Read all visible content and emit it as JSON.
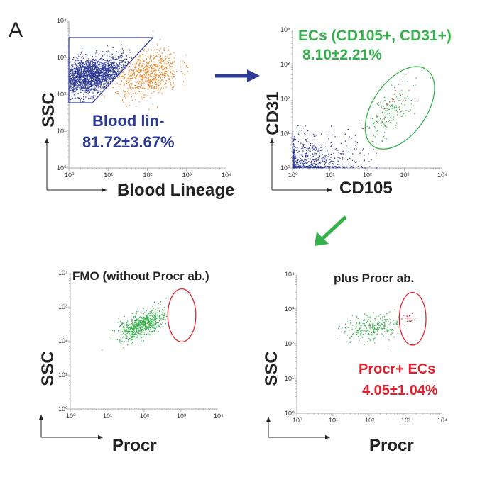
{
  "panel_label": "A",
  "colors": {
    "blue": "#2e3b96",
    "orange": "#ec8a2c",
    "green": "#35b04a",
    "red": "#e5202e",
    "axis": "#222222"
  },
  "chart_data": [
    {
      "id": "p1",
      "type": "scatter",
      "scale": "log",
      "xlabel": "Blood Lineage",
      "ylabel": "SSC",
      "xlim": [
        1,
        10000
      ],
      "ylim": [
        1,
        10000
      ],
      "xticks": [
        "10⁰",
        "10¹",
        "10²",
        "10³",
        "10⁴"
      ],
      "yticks": [
        "10⁰",
        "10¹",
        "10²",
        "10³",
        "10⁴"
      ],
      "annotations": [
        {
          "text": "Blood lin-",
          "color": "blue"
        },
        {
          "text": "81.72±3.67%",
          "color": "blue"
        }
      ],
      "gate": {
        "type": "polygon",
        "color": "blue",
        "log10_vertices": [
          [
            0,
            3.54
          ],
          [
            2.14,
            3.54
          ],
          [
            0.6,
            1.77
          ],
          [
            0,
            1.77
          ]
        ]
      },
      "populations": [
        {
          "name": "blood-lin-negative",
          "color": "blue",
          "n": 1800,
          "log10_center": [
            0.55,
            2.5
          ],
          "log10_sd": [
            0.5,
            0.27
          ],
          "corr": 0.35,
          "where": "inside"
        },
        {
          "name": "blood-lin-positive",
          "color": "orange",
          "n": 700,
          "log10_center": [
            2.0,
            2.55
          ],
          "log10_sd": [
            0.4,
            0.33
          ],
          "corr": 0.3,
          "where": "outside"
        }
      ]
    },
    {
      "id": "p2",
      "type": "scatter",
      "scale": "log",
      "xlabel": "CD105",
      "ylabel": "CD31",
      "xlim": [
        1,
        10000
      ],
      "ylim": [
        1,
        10000
      ],
      "xticks": [
        "10⁰",
        "10¹",
        "10²",
        "10³",
        "10⁴"
      ],
      "yticks": [
        "10⁰",
        "10¹",
        "10²",
        "10³",
        "10⁴"
      ],
      "annotations": [
        {
          "text": "ECs (CD105+, CD31+)",
          "color": "green"
        },
        {
          "text": "8.10±2.21%",
          "color": "green"
        }
      ],
      "gate": {
        "type": "ellipse",
        "color": "green",
        "log10_center": [
          2.88,
          1.74
        ],
        "log10_radii": [
          0.72,
          1.35
        ],
        "rotation_deg": 35
      },
      "populations": [
        {
          "name": "cd105-negative",
          "color": "blue",
          "n": 700,
          "log10_center": [
            0,
            0
          ],
          "log10_sd": [
            0.8,
            0.45
          ],
          "corr": 0.2,
          "where": "halfnormal"
        },
        {
          "name": "endothelial-cell",
          "color": "green",
          "n": 170,
          "log10_center": [
            2.6,
            1.6
          ],
          "log10_sd": [
            0.35,
            0.45
          ],
          "corr": 0.7,
          "where": "inside"
        },
        {
          "name": "procr-positive-ec",
          "color": "red",
          "n": 16,
          "log10_center": [
            2.8,
            2.1
          ],
          "log10_sd": [
            0.25,
            0.3
          ],
          "corr": 0.5,
          "where": "inside"
        }
      ]
    },
    {
      "id": "p3",
      "type": "scatter",
      "scale": "log",
      "title": "FMO (without Procr ab.)",
      "xlabel": "Procr",
      "ylabel": "SSC",
      "xlim": [
        1,
        10000
      ],
      "ylim": [
        1,
        10000
      ],
      "xticks": [
        "10⁰",
        "10¹",
        "10²",
        "10³",
        "10⁴"
      ],
      "yticks": [
        "10⁰",
        "10¹",
        "10²",
        "10³",
        "10⁴"
      ],
      "annotations": [],
      "gate": {
        "type": "ellipse",
        "color": "red",
        "log10_center": [
          3.02,
          2.75
        ],
        "log10_radii": [
          0.38,
          0.78
        ],
        "rotation_deg": 0
      },
      "populations": [
        {
          "name": "fmo-event",
          "color": "green",
          "n": 650,
          "log10_center": [
            1.95,
            2.48
          ],
          "log10_sd": [
            0.32,
            0.22
          ],
          "corr": 0.6,
          "where": "outside"
        }
      ]
    },
    {
      "id": "p4",
      "type": "scatter",
      "scale": "log",
      "title": "plus Procr ab.",
      "xlabel": "Procr",
      "ylabel": "SSC",
      "xlim": [
        1,
        10000
      ],
      "ylim": [
        1,
        10000
      ],
      "xticks": [
        "10⁰",
        "10¹",
        "10²",
        "10³",
        "10⁴"
      ],
      "yticks": [
        "10⁰",
        "10¹",
        "10²",
        "10³",
        "10⁴"
      ],
      "annotations": [
        {
          "text": "Procr+ ECs",
          "color": "red"
        },
        {
          "text": "4.05±1.04%",
          "color": "red"
        }
      ],
      "gate": {
        "type": "ellipse",
        "color": "red",
        "log10_center": [
          3.2,
          2.72
        ],
        "log10_radii": [
          0.37,
          0.76
        ],
        "rotation_deg": 0
      },
      "populations": [
        {
          "name": "procr-negative-ec",
          "color": "green",
          "n": 260,
          "log10_center": [
            2.1,
            2.45
          ],
          "log10_sd": [
            0.38,
            0.2
          ],
          "corr": 0.3,
          "where": "outside"
        },
        {
          "name": "procr-positive-ec",
          "color": "red",
          "n": 18,
          "log10_center": [
            3.1,
            2.72
          ],
          "log10_sd": [
            0.1,
            0.08
          ],
          "corr": 0,
          "where": "inside"
        }
      ]
    }
  ]
}
